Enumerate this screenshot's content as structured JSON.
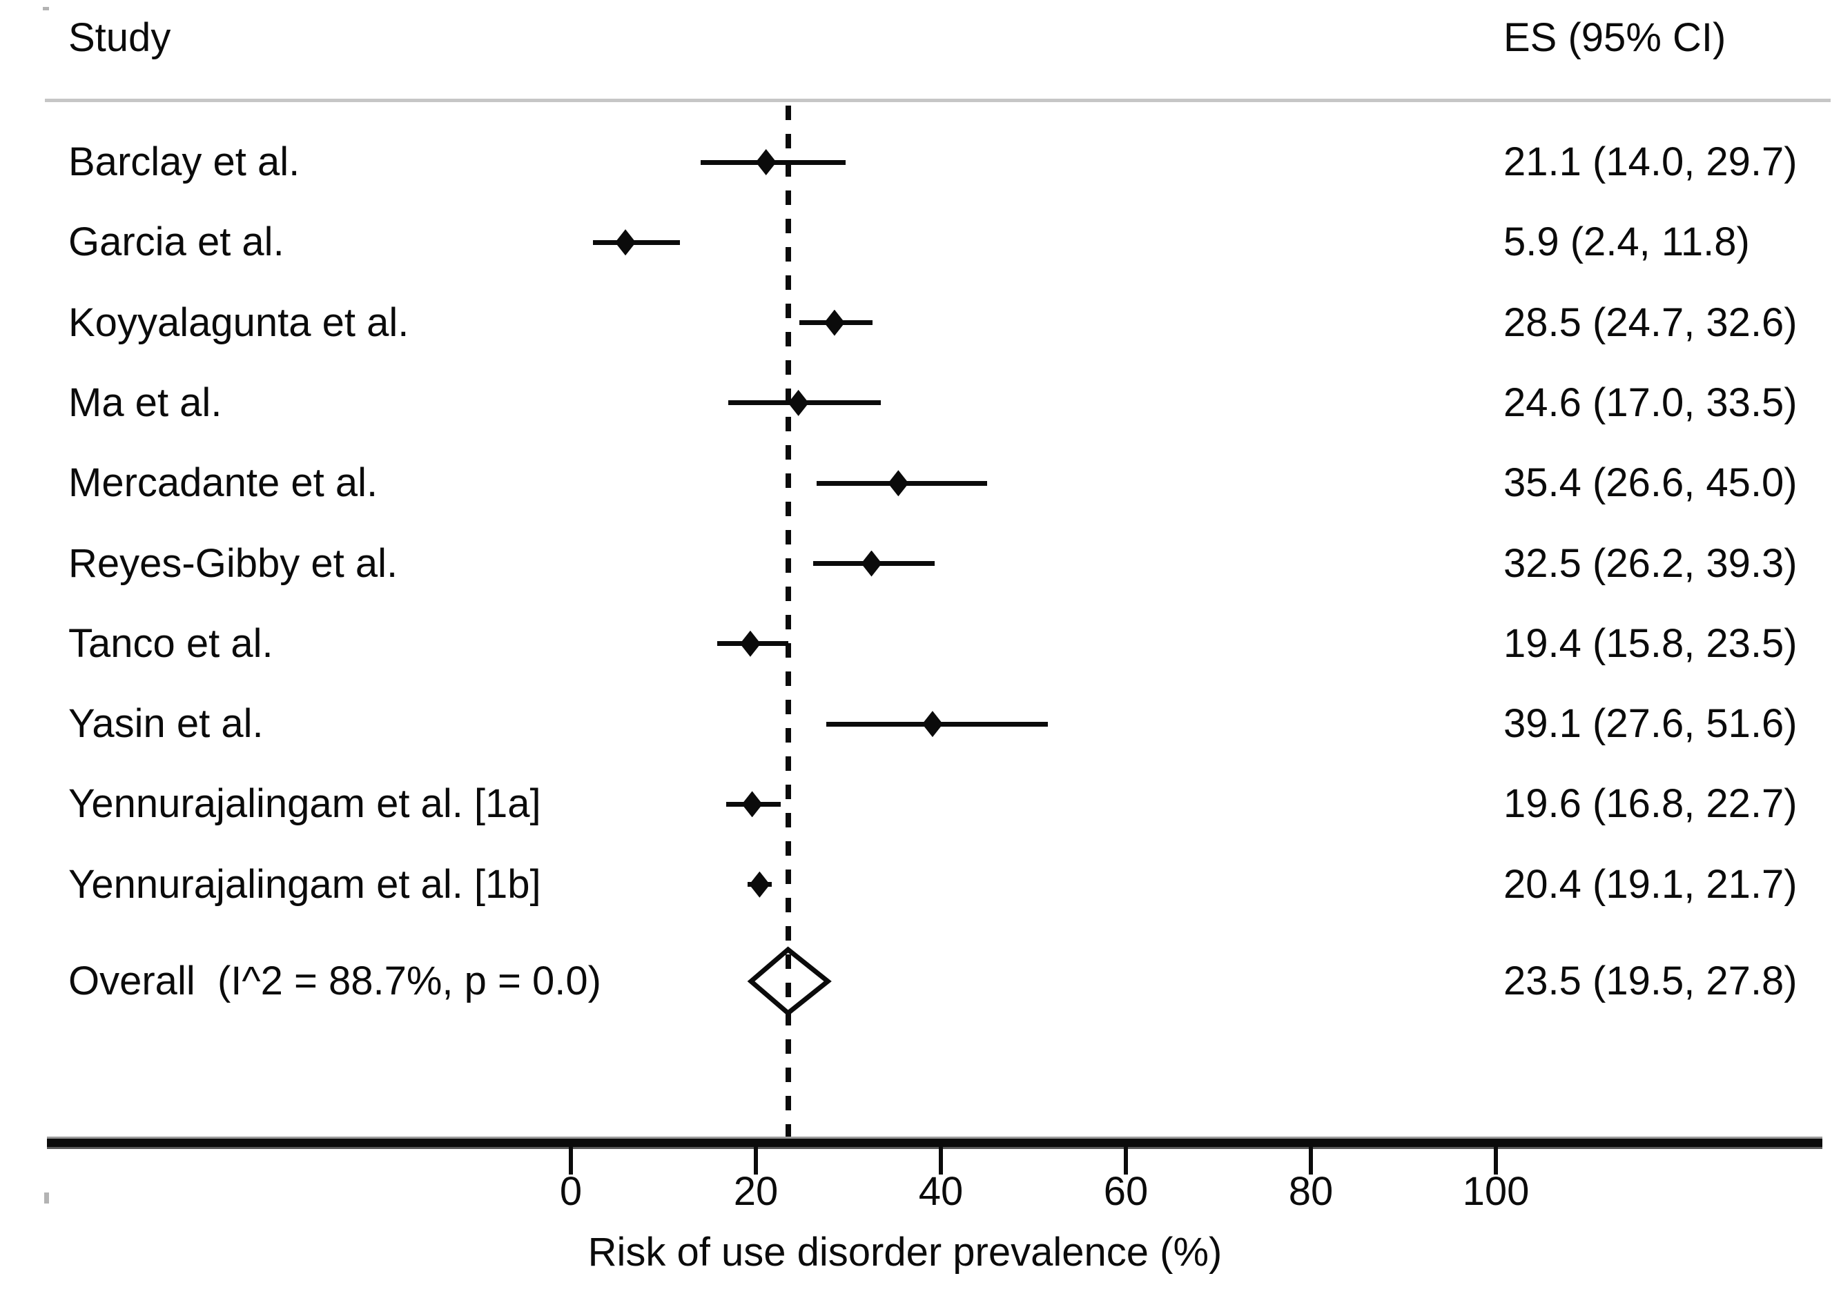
{
  "header": {
    "study_column": "Study",
    "es_column": "ES (95% CI)"
  },
  "chart_data": {
    "type": "forest",
    "title": "",
    "xlabel": "Risk of use disorder prevalence (%)",
    "x_ticks": [
      0,
      20,
      40,
      60,
      80,
      100
    ],
    "xlim": [
      0,
      100
    ],
    "dashed_reference_value": 23.5,
    "grid": "off",
    "studies": [
      {
        "label": "Barclay et al.",
        "es": 21.1,
        "ci_low": 14.0,
        "ci_high": 29.7,
        "es_text": "21.1 (14.0, 29.7)"
      },
      {
        "label": "Garcia et al.",
        "es": 5.9,
        "ci_low": 2.4,
        "ci_high": 11.8,
        "es_text": "5.9 (2.4, 11.8)"
      },
      {
        "label": "Koyyalagunta et al.",
        "es": 28.5,
        "ci_low": 24.7,
        "ci_high": 32.6,
        "es_text": "28.5 (24.7, 32.6)"
      },
      {
        "label": "Ma et al.",
        "es": 24.6,
        "ci_low": 17.0,
        "ci_high": 33.5,
        "es_text": "24.6 (17.0, 33.5)"
      },
      {
        "label": "Mercadante et al.",
        "es": 35.4,
        "ci_low": 26.6,
        "ci_high": 45.0,
        "es_text": "35.4 (26.6, 45.0)"
      },
      {
        "label": "Reyes-Gibby et al.",
        "es": 32.5,
        "ci_low": 26.2,
        "ci_high": 39.3,
        "es_text": "32.5 (26.2, 39.3)"
      },
      {
        "label": "Tanco et al.",
        "es": 19.4,
        "ci_low": 15.8,
        "ci_high": 23.5,
        "es_text": "19.4 (15.8, 23.5)"
      },
      {
        "label": "Yasin et al.",
        "es": 39.1,
        "ci_low": 27.6,
        "ci_high": 51.6,
        "es_text": "39.1 (27.6, 51.6)"
      },
      {
        "label": "Yennurajalingam et al. [1a]",
        "es": 19.6,
        "ci_low": 16.8,
        "ci_high": 22.7,
        "es_text": "19.6 (16.8, 22.7)"
      },
      {
        "label": "Yennurajalingam et al. [1b]",
        "es": 20.4,
        "ci_low": 19.1,
        "ci_high": 21.7,
        "es_text": "20.4 (19.1, 21.7)"
      }
    ],
    "overall": {
      "label": "Overall  (I^2 = 88.7%, p = 0.0)",
      "es": 23.5,
      "ci_low": 19.5,
      "ci_high": 27.8,
      "es_text": "23.5 (19.5, 27.8)"
    },
    "colors": {
      "ink": "#0b0b0b",
      "separator": "#c6c6c6",
      "background": "#ffffff"
    }
  }
}
